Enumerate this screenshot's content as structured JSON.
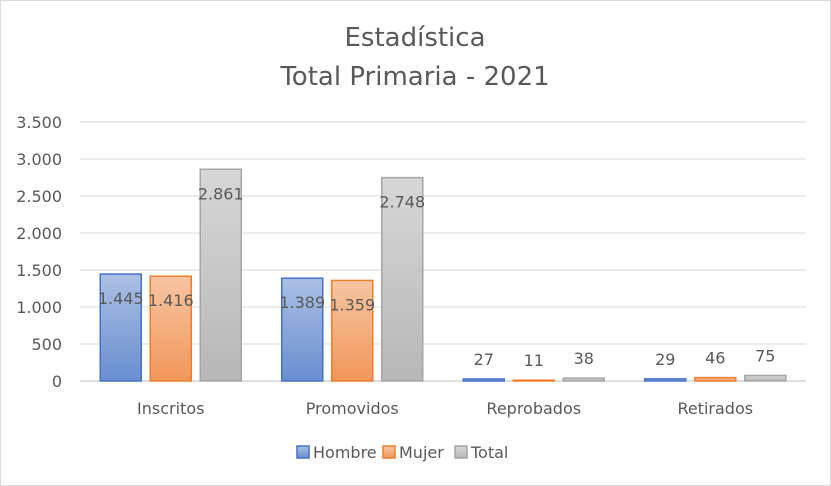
{
  "chart_data": {
    "type": "bar",
    "title_line1": "Estadística",
    "title_line2": "Total Primaria - 2021",
    "xlabel": "",
    "ylabel": "",
    "ylim": [
      0,
      3500
    ],
    "yticks": [
      0,
      500,
      1000,
      1500,
      2000,
      2500,
      3000,
      3500
    ],
    "ytick_labels": [
      "0",
      "500",
      "1.000",
      "1.500",
      "2.000",
      "2.500",
      "3.000",
      "3.500"
    ],
    "grid": true,
    "legend_position": "bottom",
    "categories": [
      "Inscritos",
      "Promovidos",
      "Reprobados",
      "Retirados"
    ],
    "series": [
      {
        "name": "Hombre",
        "values": [
          1445,
          1389,
          27,
          29
        ],
        "labels": [
          "1.445",
          "1.389",
          "27",
          "29"
        ],
        "color": "#4472c4"
      },
      {
        "name": "Mujer",
        "values": [
          1416,
          1359,
          11,
          46
        ],
        "labels": [
          "1.416",
          "1.359",
          "11",
          "46"
        ],
        "color": "#ed7d31"
      },
      {
        "name": "Total",
        "values": [
          2861,
          2748,
          38,
          75
        ],
        "labels": [
          "2.861",
          "2.748",
          "38",
          "75"
        ],
        "color": "#a5a5a5"
      }
    ]
  }
}
